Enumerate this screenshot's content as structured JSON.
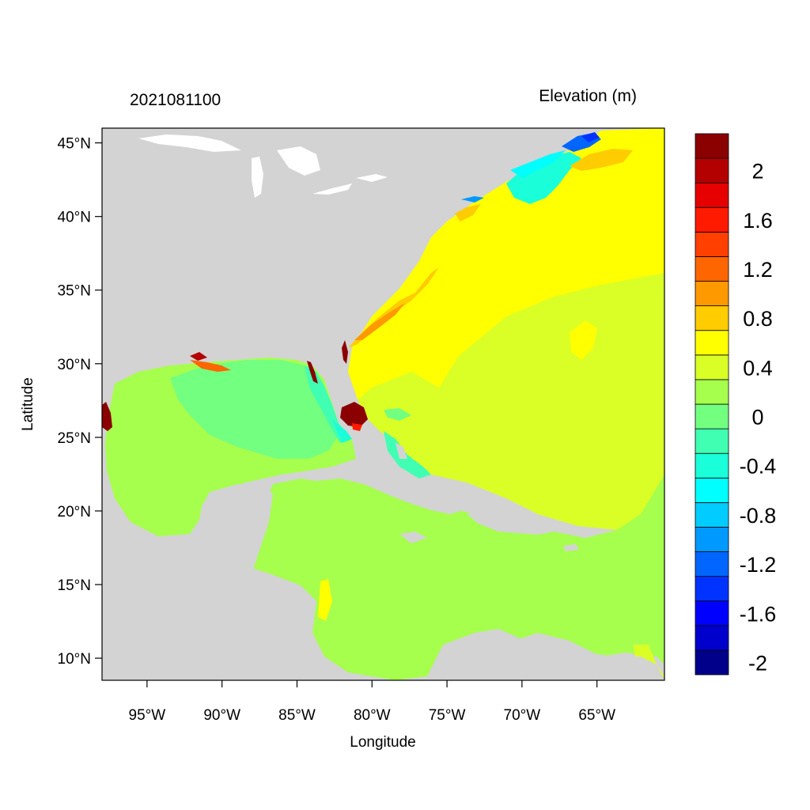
{
  "map": {
    "date_label": "2021081100",
    "variable_label": "Elevation (m)",
    "x_axis_title": "Longitude",
    "y_axis_title": "Latitude",
    "lon_range": [
      -98,
      -60.5
    ],
    "lat_range": [
      8.5,
      46
    ],
    "x_ticks": [
      {
        "lon": -95,
        "label": "95°W"
      },
      {
        "lon": -90,
        "label": "90°W"
      },
      {
        "lon": -85,
        "label": "85°W"
      },
      {
        "lon": -80,
        "label": "80°W"
      },
      {
        "lon": -75,
        "label": "75°W"
      },
      {
        "lon": -70,
        "label": "70°W"
      },
      {
        "lon": -65,
        "label": "65°W"
      }
    ],
    "y_ticks": [
      {
        "lat": 45,
        "label": "45°N"
      },
      {
        "lat": 40,
        "label": "40°N"
      },
      {
        "lat": 35,
        "label": "35°N"
      },
      {
        "lat": 30,
        "label": "30°N"
      },
      {
        "lat": 25,
        "label": "25°N"
      },
      {
        "lat": 20,
        "label": "20°N"
      },
      {
        "lat": 15,
        "label": "15°N"
      },
      {
        "lat": 10,
        "label": "10°N"
      }
    ],
    "colors": {
      "land": "#d3d3d3",
      "lakes": "#ffffff",
      "open_atlantic": "#ffff00",
      "southern_basin": "#d9ff26",
      "caribbean": "#a6ff4d",
      "gulf_center": "#73ff80",
      "florida_surge": "#8b0000"
    }
  },
  "colorbar": {
    "colors": [
      "#00008b",
      "#0000cd",
      "#0000ff",
      "#0033ff",
      "#0066ff",
      "#0099ff",
      "#00ccff",
      "#00ffff",
      "#1affd9",
      "#40ffb3",
      "#73ff80",
      "#a6ff4d",
      "#d9ff26",
      "#ffff00",
      "#ffcc00",
      "#ff9900",
      "#ff6600",
      "#ff4000",
      "#ff1a00",
      "#e60000",
      "#b30000",
      "#8b0000"
    ],
    "labels": [
      {
        "value": "2",
        "boundary": 20
      },
      {
        "value": "1.6",
        "boundary": 18
      },
      {
        "value": "1.2",
        "boundary": 16
      },
      {
        "value": "0.8",
        "boundary": 14
      },
      {
        "value": "0.4",
        "boundary": 12
      },
      {
        "value": "0",
        "boundary": 10
      },
      {
        "value": "-0.4",
        "boundary": 8
      },
      {
        "value": "-0.8",
        "boundary": 6
      },
      {
        "value": "-1.2",
        "boundary": 4
      },
      {
        "value": "-1.6",
        "boundary": 2
      },
      {
        "value": "-2",
        "boundary": 0
      }
    ]
  }
}
